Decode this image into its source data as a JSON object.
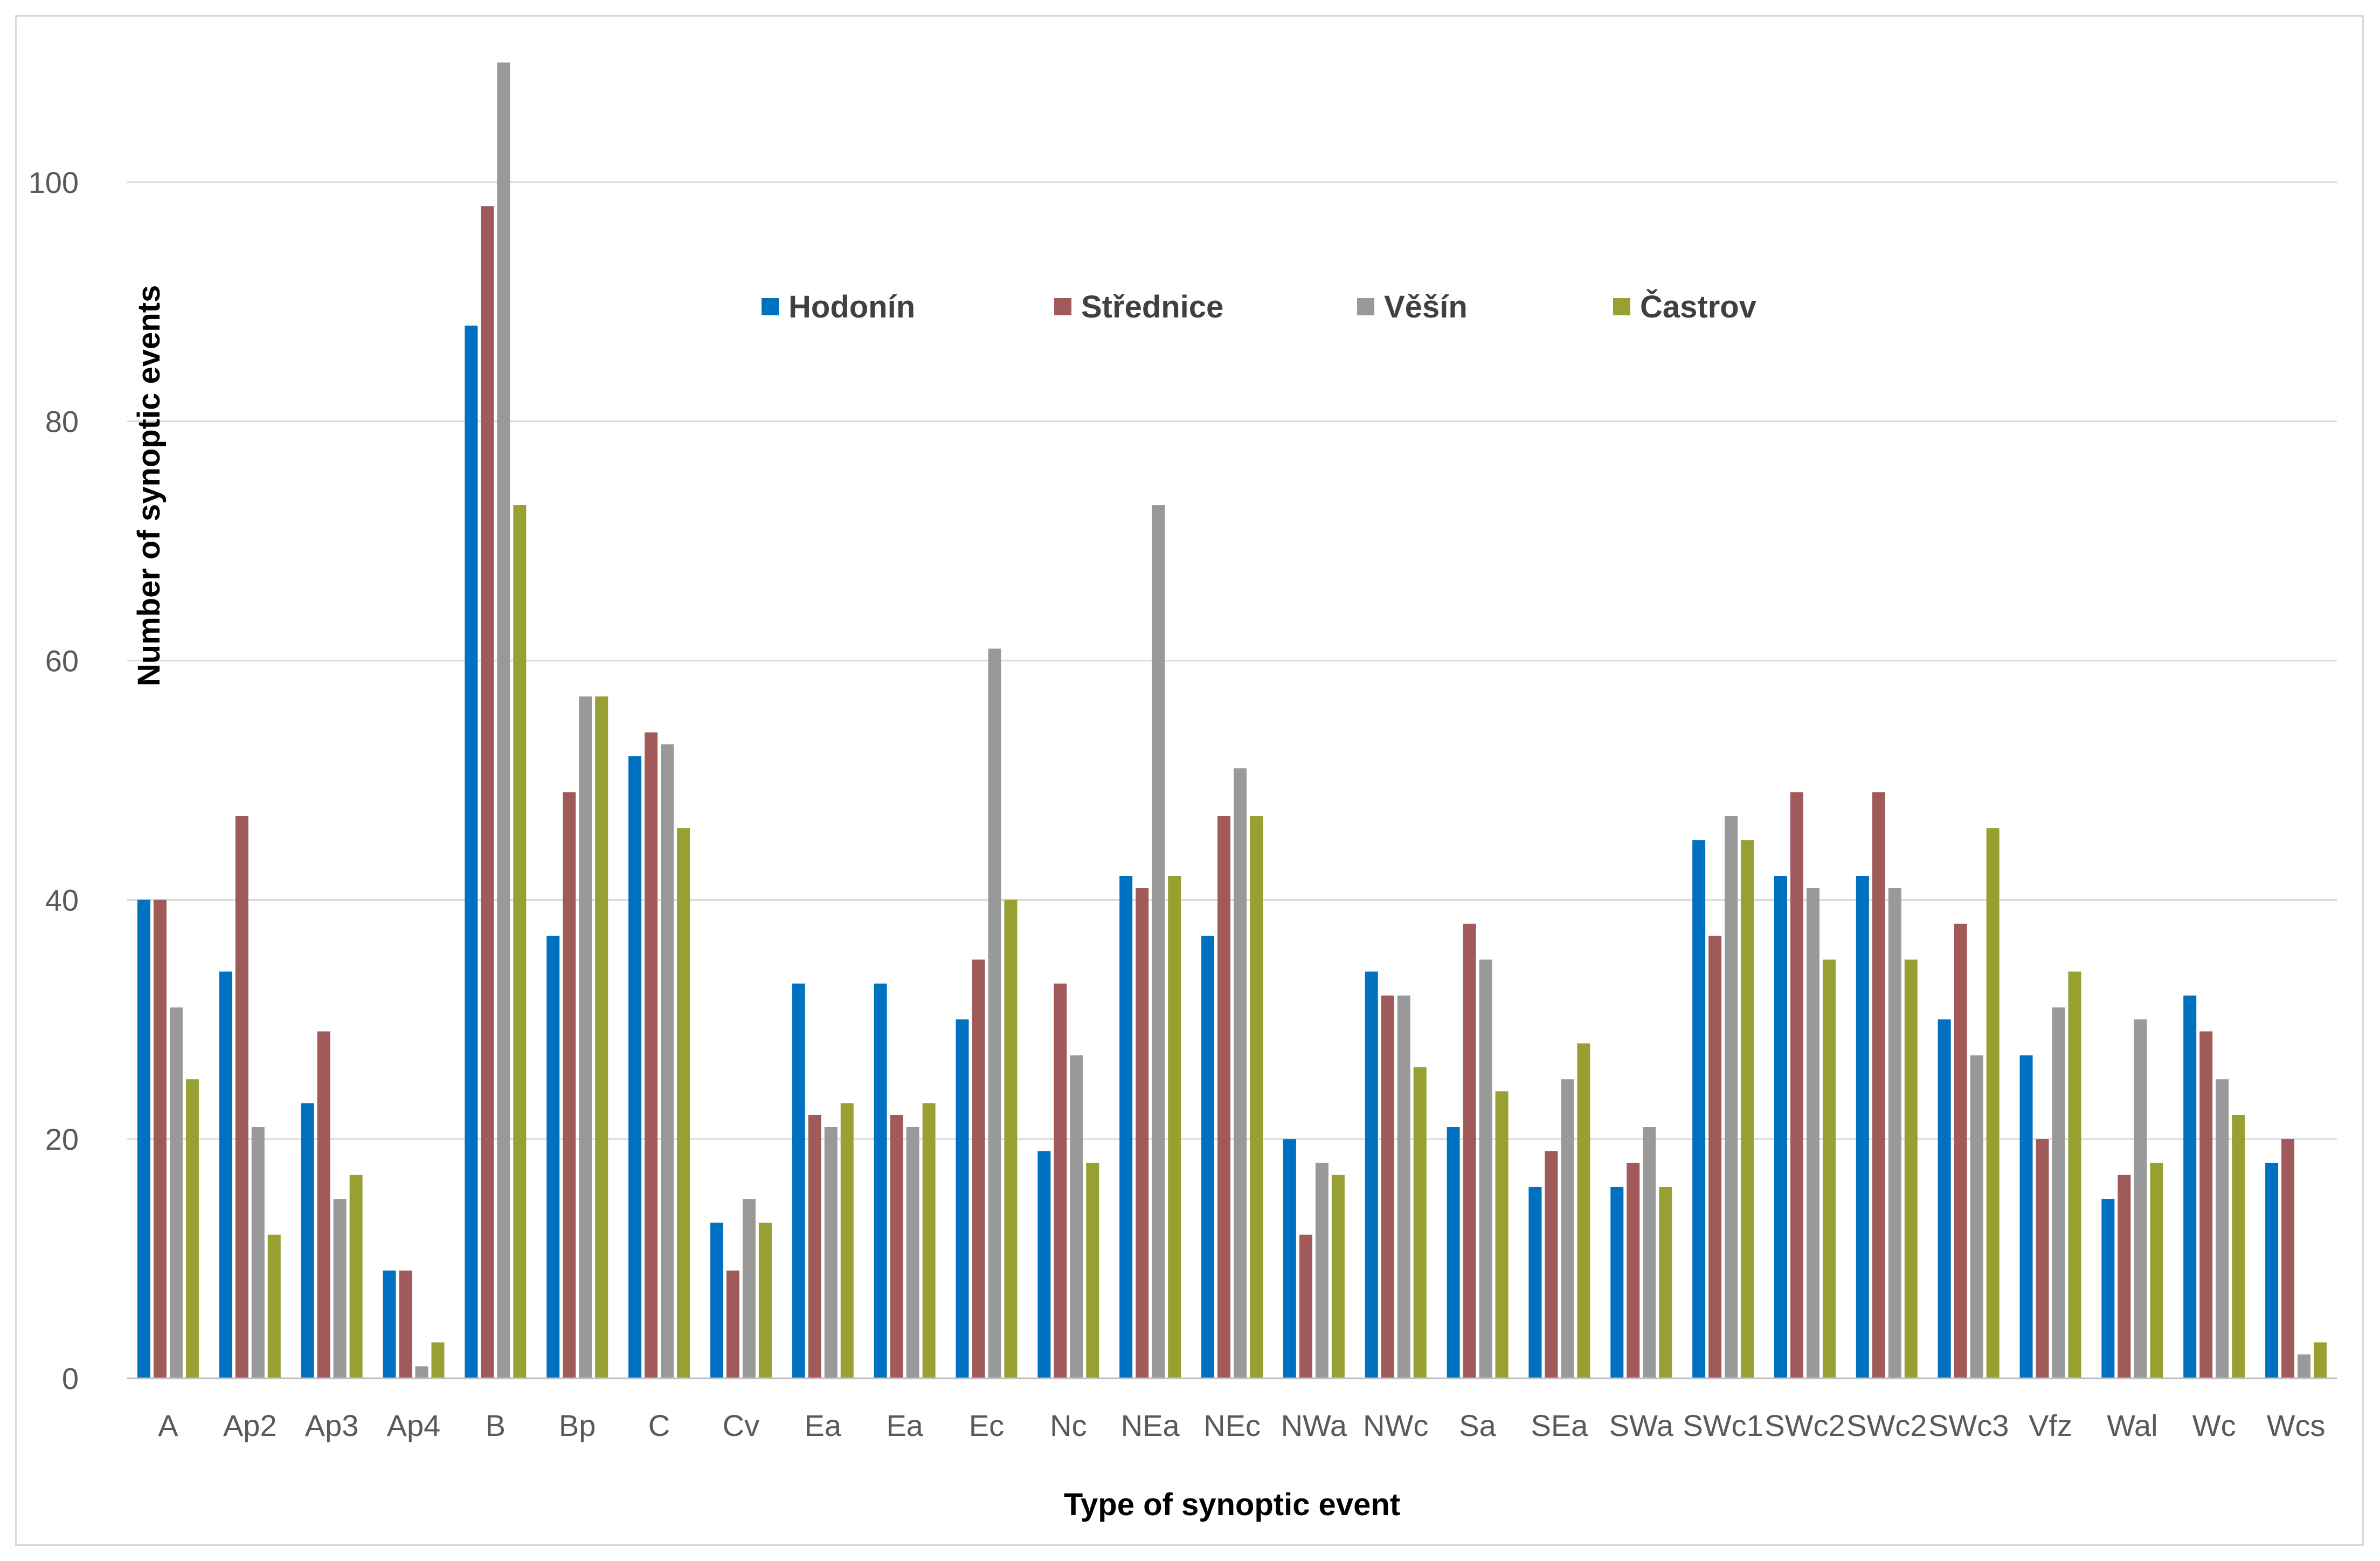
{
  "chart_data": {
    "type": "bar",
    "title": "",
    "xlabel": "Type of synoptic event",
    "ylabel": "Number of synoptic events",
    "ylim": [
      0,
      110
    ],
    "yticks": [
      0,
      20,
      40,
      60,
      80,
      100
    ],
    "grid": true,
    "legend_position": "top-center",
    "categories": [
      "A",
      "Ap2",
      "Ap3",
      "Ap4",
      "B",
      "Bp",
      "C",
      "Cv",
      "Ea",
      "Ea",
      "Ec",
      "Nc",
      "NEa",
      "NEc",
      "NWa",
      "NWc",
      "Sa",
      "SEa",
      "SWa",
      "SWc1",
      "SWc2",
      "SWc2",
      "SWc3",
      "Vfz",
      "Wal",
      "Wc",
      "Wcs"
    ],
    "series": [
      {
        "name": "Hodonín",
        "color": "#0070c0",
        "values": [
          40,
          34,
          23,
          9,
          88,
          37,
          52,
          13,
          33,
          33,
          30,
          19,
          42,
          37,
          20,
          34,
          21,
          16,
          16,
          45,
          42,
          42,
          30,
          27,
          15,
          32,
          18
        ]
      },
      {
        "name": "Střednice",
        "color": "#a05a5a",
        "values": [
          40,
          47,
          29,
          9,
          98,
          49,
          54,
          9,
          22,
          22,
          35,
          33,
          41,
          47,
          12,
          32,
          38,
          19,
          18,
          37,
          49,
          49,
          38,
          20,
          17,
          29,
          20
        ]
      },
      {
        "name": "Věšín",
        "color": "#999999",
        "values": [
          31,
          21,
          15,
          1,
          110,
          57,
          53,
          15,
          21,
          21,
          61,
          27,
          73,
          51,
          18,
          32,
          35,
          25,
          21,
          47,
          41,
          41,
          27,
          31,
          30,
          25,
          2
        ]
      },
      {
        "name": "Častrov",
        "color": "#99a032",
        "values": [
          25,
          12,
          17,
          3,
          73,
          57,
          46,
          13,
          23,
          23,
          40,
          18,
          42,
          47,
          17,
          26,
          24,
          28,
          16,
          45,
          35,
          35,
          46,
          34,
          18,
          22,
          3
        ]
      }
    ]
  }
}
